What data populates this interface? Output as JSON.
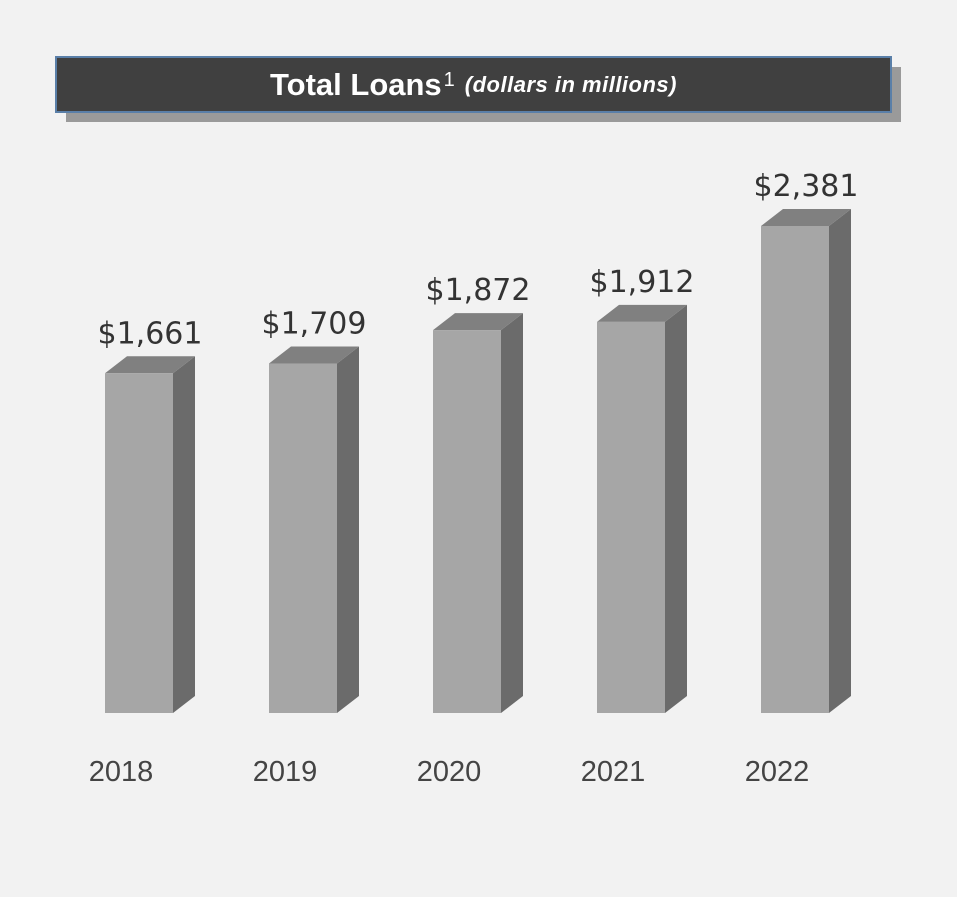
{
  "chart_data": {
    "type": "bar3d",
    "title": "Total Loans",
    "title_footnote": "1",
    "subtitle": "(dollars in millions)",
    "categories": [
      "2018",
      "2019",
      "2020",
      "2021",
      "2022"
    ],
    "values": [
      1661,
      1709,
      1872,
      1912,
      2381
    ],
    "value_labels": [
      "$1,661",
      "$1,709",
      "$1,872",
      "$1,912",
      "$2,381"
    ],
    "color": "#a6a6a6"
  }
}
